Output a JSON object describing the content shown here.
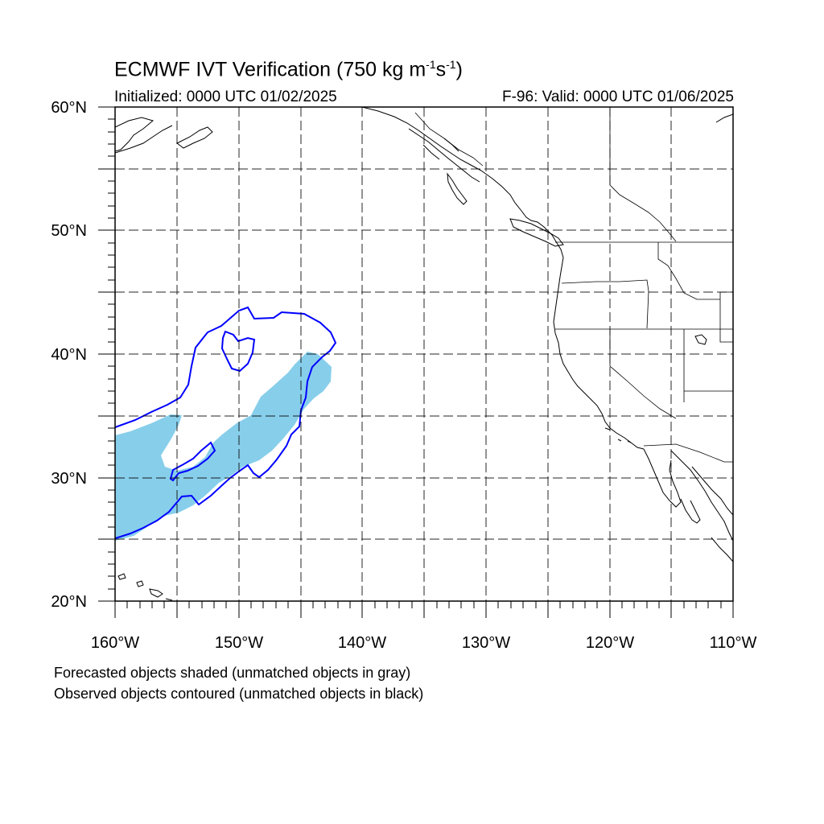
{
  "title": {
    "main_prefix": "ECMWF IVT Verification (750 kg m",
    "exp1": "-1",
    "mid": "s",
    "exp2": "-1",
    "suffix": ")"
  },
  "initialized_text": "Initialized: 0000 UTC 01/02/2025",
  "valid_text": "F-96: Valid: 0000 UTC 01/06/2025",
  "notes": [
    "Forecasted objects shaded (unmatched objects in gray)",
    "Observed objects contoured (unmatched objects in black)"
  ],
  "map": {
    "lon_range": [
      -160,
      -110
    ],
    "lat_range": [
      20,
      60
    ],
    "lat_labels": [
      "20°N",
      "30°N",
      "40°N",
      "50°N",
      "60°N"
    ],
    "lon_labels": [
      "160°W",
      "150°W",
      "140°W",
      "130°W",
      "120°W",
      "110°W"
    ],
    "grid_interval_deg": 5,
    "colors": {
      "forecast_fill": "#87ceeb",
      "observed_contour": "#0000ff",
      "coastline": "#000000",
      "grid": "#000000"
    }
  }
}
